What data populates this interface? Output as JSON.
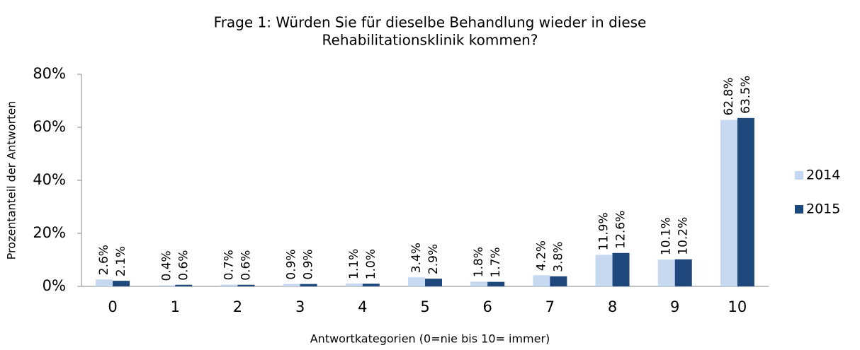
{
  "chart_data": {
    "type": "bar",
    "title": [
      "Frage 1: Würden Sie für dieselbe Behandlung wieder in diese",
      "Rehabilitationsklinik kommen?"
    ],
    "x_label": "Antwortkategorien (0=nie bis 10= immer)",
    "y_label": "Prozentanteil der Antworten",
    "categories": [
      "0",
      "1",
      "2",
      "3",
      "4",
      "5",
      "6",
      "7",
      "8",
      "9",
      "10"
    ],
    "series": [
      {
        "name": "2014",
        "color": "#c6d9f1",
        "values": [
          2.6,
          0.4,
          0.7,
          0.9,
          1.1,
          3.4,
          1.8,
          4.2,
          11.9,
          10.1,
          62.8
        ],
        "value_labels": [
          "2.6%",
          "0.4%",
          "0.7%",
          "0.9%",
          "1.1%",
          "3.4%",
          "1.8%",
          "4.2%",
          "11.9%",
          "10.1%",
          "62.8%"
        ]
      },
      {
        "name": "2015",
        "color": "#1f497d",
        "values": [
          2.1,
          0.6,
          0.6,
          0.9,
          1.0,
          2.9,
          1.7,
          3.8,
          12.6,
          10.2,
          63.5
        ],
        "value_labels": [
          "2.1%",
          "0.6%",
          "0.6%",
          "0.9%",
          "1.0%",
          "2.9%",
          "1.7%",
          "3.8%",
          "12.6%",
          "10.2%",
          "63.5%"
        ]
      }
    ],
    "ylim": [
      0,
      80
    ],
    "yticks": [
      {
        "value": 0,
        "label": "0%"
      },
      {
        "value": 20,
        "label": "20%"
      },
      {
        "value": 40,
        "label": "40%"
      },
      {
        "value": 60,
        "label": "60%"
      },
      {
        "value": 80,
        "label": "80%"
      }
    ],
    "legend": "right"
  }
}
